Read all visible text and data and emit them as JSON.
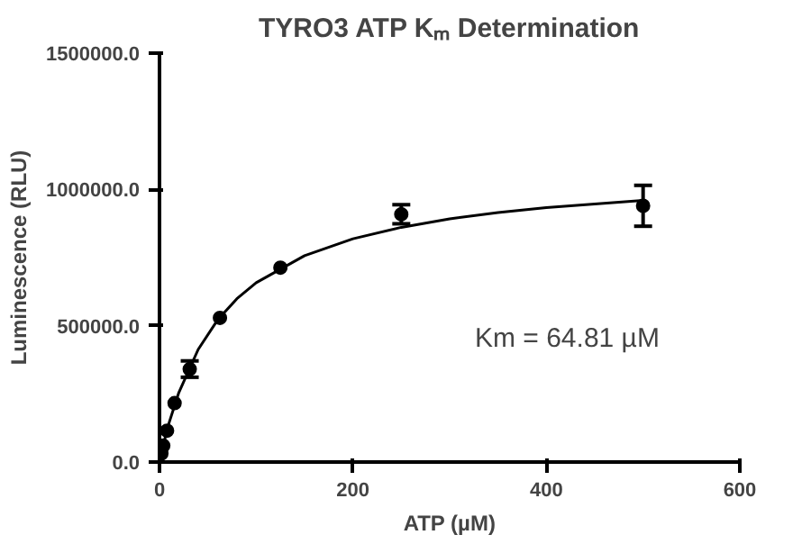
{
  "chart_data": {
    "type": "scatter",
    "title": "TYRO3 ATP Kₘ Determination",
    "xlabel": "ATP (µM)",
    "ylabel": "Luminescence (RLU)",
    "xlim": [
      0,
      600
    ],
    "xticks": [
      0,
      200,
      400,
      600
    ],
    "ylim": [
      0,
      1500000
    ],
    "yticks": [
      {
        "value": 0,
        "label": "0.0"
      },
      {
        "value": 500000,
        "label": "500000.0"
      },
      {
        "value": 1000000,
        "label": "1000000.0"
      },
      {
        "value": 1500000,
        "label": "1500000.0"
      }
    ],
    "grid": false,
    "marker": "circle",
    "series": [
      {
        "color": "#000000",
        "x": [
          1.95,
          3.9,
          7.8,
          15.6,
          31.25,
          62.5,
          125,
          250,
          500
        ],
        "values": [
          31000,
          60000,
          115000,
          216000,
          341000,
          529000,
          713000,
          909000,
          940000
        ],
        "errors": [
          null,
          null,
          null,
          null,
          30000,
          null,
          null,
          35000,
          75000
        ]
      },
      {
        "type": "line",
        "color": "#000000",
        "marker": "none",
        "line_style": "solid",
        "x": [
          0,
          5,
          10,
          20,
          40,
          60,
          80,
          100,
          150,
          200,
          250,
          300,
          350,
          400,
          500
        ],
        "values": [
          0,
          78000,
          145000,
          255000,
          413000,
          521000,
          599000,
          658000,
          757000,
          819000,
          861000,
          892000,
          915000,
          933000,
          960000
        ]
      }
    ],
    "annotations": [
      "Km = 64.81 µM"
    ]
  }
}
